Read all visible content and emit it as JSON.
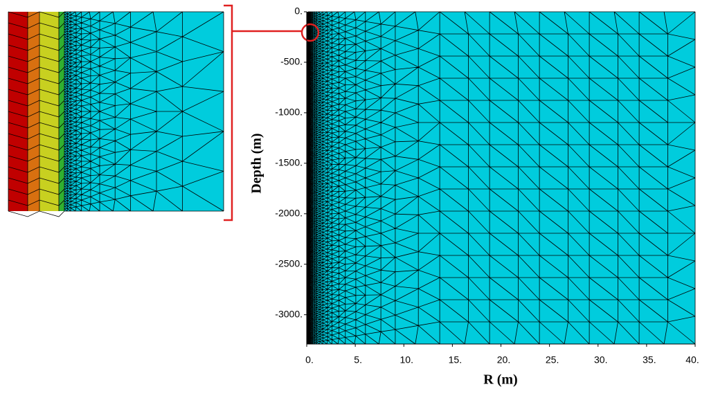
{
  "chart_data": {
    "type": "mesh",
    "xlabel": "R (m)",
    "ylabel": "Depth (m)",
    "color": "#00ccdd",
    "xlim": [
      0,
      40
    ],
    "ylim": [
      -3290,
      0
    ],
    "xticks": [
      {
        "value": 0,
        "label": "0."
      },
      {
        "value": 5,
        "label": "5."
      },
      {
        "value": 10,
        "label": "10."
      },
      {
        "value": 15,
        "label": "15."
      },
      {
        "value": 20,
        "label": "20."
      },
      {
        "value": 25,
        "label": "25."
      },
      {
        "value": 30,
        "label": "30."
      },
      {
        "value": 35,
        "label": "35."
      },
      {
        "value": 40,
        "label": "40."
      }
    ],
    "yticks": [
      {
        "value": 0,
        "label": "0."
      },
      {
        "value": -500,
        "label": "-500."
      },
      {
        "value": -1000,
        "label": "-1000."
      },
      {
        "value": -1500,
        "label": "-1500."
      },
      {
        "value": -2000,
        "label": "-2000."
      },
      {
        "value": -2500,
        "label": "-2500."
      },
      {
        "value": -3000,
        "label": "-3000."
      }
    ]
  }
}
